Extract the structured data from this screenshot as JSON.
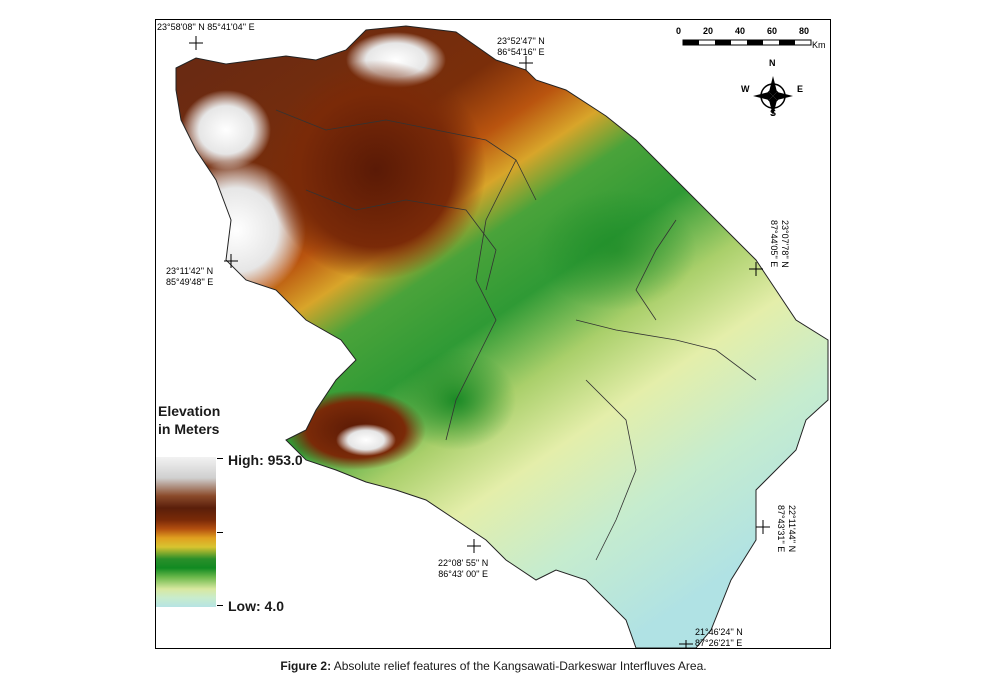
{
  "legend": {
    "title_line1": "Elevation",
    "title_line2": "in Meters",
    "high_label": "High: 953.0",
    "low_label": "Low: 4.0"
  },
  "scale_bar": {
    "ticks": [
      "0",
      "20",
      "40",
      "60",
      "80"
    ],
    "unit": "Km"
  },
  "north_arrow": {
    "n": "N",
    "s": "S",
    "e": "E",
    "w": "W"
  },
  "coordinates": {
    "top_left": {
      "line1": "23°58'08'' N   85°41'04'' E"
    },
    "top_center": {
      "line1": "23°52'47'' N",
      "line2": "86°54'16'' E"
    },
    "left_mid": {
      "line1": "23°11'42'' N",
      "line2": "85°49'48'' E"
    },
    "right_upper": {
      "line1": "23°07'78'' N",
      "line2": "87°44'05'' E"
    },
    "right_lower": {
      "line1": "22°11'44'' N",
      "line2": "87°43'31'' E"
    },
    "bottom_center": {
      "line1": "22°08' 55'' N",
      "line2": "86°43' 00'' E"
    },
    "bottom_right": {
      "line1": "21°46'24'' N",
      "line2": "87°26'21'' E"
    }
  },
  "caption": {
    "label": "Figure 2:",
    "text": " Absolute relief features of the Kangsawati-Darkeswar Interfluves Area."
  },
  "colors": {
    "high": "#f2f2f2",
    "brown": "#5a1e0a",
    "orange": "#e0a020",
    "green": "#118a22",
    "low": "#b6e4e4"
  }
}
